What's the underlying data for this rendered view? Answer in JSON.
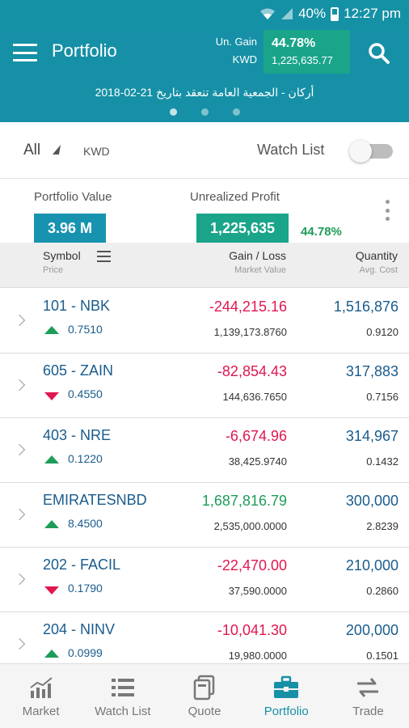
{
  "status_bar": {
    "battery": "40%",
    "time": "12:27 pm"
  },
  "app_bar": {
    "title": "Portfolio",
    "gain_label": "Un. Gain",
    "currency_label": "KWD",
    "gain_percent": "44.78%",
    "gain_amount": "1,225,635.77"
  },
  "ticker": {
    "text": "أركان - الجمعية العامة تنعقد بتاريخ 21-02-2018"
  },
  "filters": {
    "scope": "All",
    "currency": "KWD",
    "watch_list_label": "Watch List",
    "watch_list_on": false
  },
  "summary": {
    "portfolio_value_label": "Portfolio Value",
    "portfolio_value": "3.96 M",
    "unrealized_profit_label": "Unrealized Profit",
    "unrealized_profit": "1,225,635",
    "unrealized_percent": "44.78%"
  },
  "table_header": {
    "symbol": "Symbol",
    "price": "Price",
    "gain_loss": "Gain / Loss",
    "market_value": "Market Value",
    "quantity": "Quantity",
    "avg_cost": "Avg. Cost"
  },
  "rows": [
    {
      "symbol": "101 - NBK",
      "price": "0.7510",
      "direction": "up",
      "gain": "-244,215.16",
      "gain_sign": "neg",
      "market_value": "1,139,173.8760",
      "quantity": "1,516,876",
      "avg_cost": "0.9120"
    },
    {
      "symbol": "605 - ZAIN",
      "price": "0.4550",
      "direction": "down",
      "gain": "-82,854.43",
      "gain_sign": "neg",
      "market_value": "144,636.7650",
      "quantity": "317,883",
      "avg_cost": "0.7156"
    },
    {
      "symbol": "403 - NRE",
      "price": "0.1220",
      "direction": "up",
      "gain": "-6,674.96",
      "gain_sign": "neg",
      "market_value": "38,425.9740",
      "quantity": "314,967",
      "avg_cost": "0.1432"
    },
    {
      "symbol": "EMIRATESNBD",
      "price": "8.4500",
      "direction": "up",
      "gain": "1,687,816.79",
      "gain_sign": "pos",
      "market_value": "2,535,000.0000",
      "quantity": "300,000",
      "avg_cost": "2.8239"
    },
    {
      "symbol": "202 - FACIL",
      "price": "0.1790",
      "direction": "down",
      "gain": "-22,470.00",
      "gain_sign": "neg",
      "market_value": "37,590.0000",
      "quantity": "210,000",
      "avg_cost": "0.2860"
    },
    {
      "symbol": "204 - NINV",
      "price": "0.0999",
      "direction": "up",
      "gain": "-10,041.30",
      "gain_sign": "neg",
      "market_value": "19,980.0000",
      "quantity": "200,000",
      "avg_cost": "0.1501"
    }
  ],
  "bottom_nav": [
    {
      "label": "Market",
      "icon": "market-chart-icon",
      "active": false
    },
    {
      "label": "Watch List",
      "icon": "list-icon",
      "active": false
    },
    {
      "label": "Quote",
      "icon": "quote-icon",
      "active": false
    },
    {
      "label": "Portfolio",
      "icon": "briefcase-icon",
      "active": true
    },
    {
      "label": "Trade",
      "icon": "swap-arrows-icon",
      "active": false
    }
  ],
  "colors": {
    "primary": "#1690a6",
    "gain_box": "#1aa58a",
    "value_box": "#1793b0",
    "positive": "#1e9c5a",
    "negative": "#e0174f",
    "symbol_blue": "#1a5b8c"
  }
}
